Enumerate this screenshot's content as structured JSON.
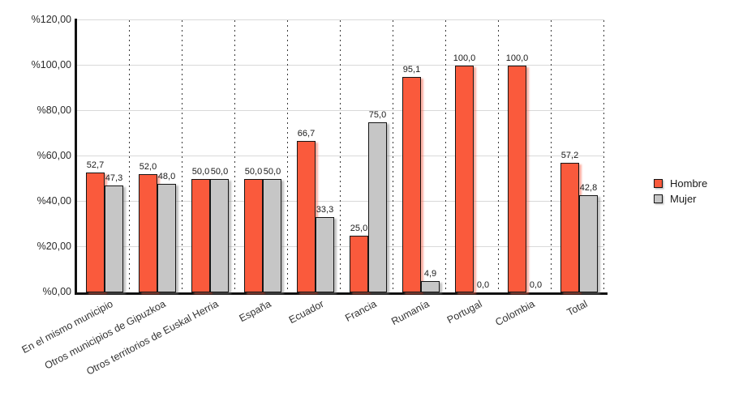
{
  "chart_data": {
    "type": "bar",
    "title": "",
    "xlabel": "",
    "ylabel": "",
    "ylim": [
      0,
      120
    ],
    "ytick_step": 20,
    "yticks": [
      "%0,00",
      "%20,00",
      "%40,00",
      "%60,00",
      "%80,00",
      "%100,00",
      "%120,00"
    ],
    "grid": true,
    "legend_position": "right",
    "categories": [
      "En el mismo municipio",
      "Otros municipios de Gipuzkoa",
      "Otros territorios de Euskal Herria",
      "España",
      "Ecuador",
      "Francia",
      "Rumanía",
      "Portugal",
      "Colombia",
      "Total"
    ],
    "series": [
      {
        "name": "Hombre",
        "color": "#FA5A3C",
        "shadow_color": "rgba(250,110,85,0.55)",
        "values": [
          52.7,
          52.0,
          50.0,
          50.0,
          66.7,
          25.0,
          95.1,
          100.0,
          100.0,
          57.2
        ],
        "value_labels": [
          "52,7",
          "52,0",
          "50,0",
          "50,0",
          "66,7",
          "25,0",
          "95,1",
          "100,0",
          "100,0",
          "57,2"
        ]
      },
      {
        "name": "Mujer",
        "color": "#C6C6C6",
        "shadow_color": "rgba(130,130,130,0.5)",
        "values": [
          47.3,
          48.0,
          50.0,
          50.0,
          33.3,
          75.0,
          4.9,
          0.0,
          0.0,
          42.8
        ],
        "value_labels": [
          "47,3",
          "48,0",
          "50,0",
          "50,0",
          "33,3",
          "75,0",
          "4,9",
          "0,0",
          "0,0",
          "42,8"
        ]
      }
    ]
  },
  "legend": {
    "items": [
      {
        "label": "Hombre",
        "color": "#FA5A3C"
      },
      {
        "label": "Mujer",
        "color": "#C6C6C6"
      }
    ]
  }
}
